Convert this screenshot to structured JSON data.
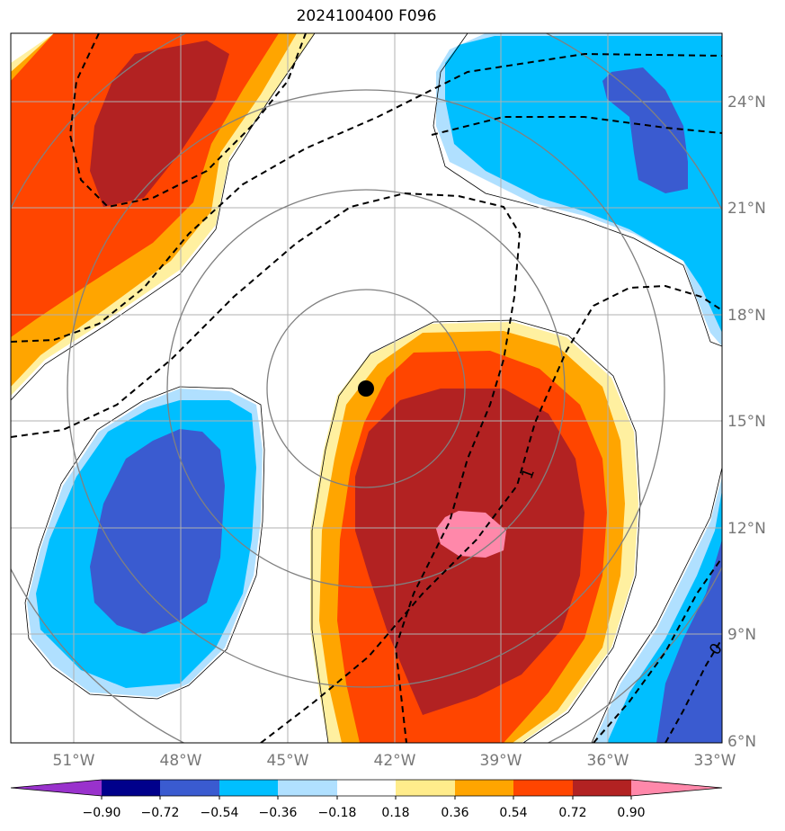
{
  "title": "2024100400 F096",
  "map": {
    "lat_labels": [
      "24°N",
      "21°N",
      "18°N",
      "15°N",
      "12°N",
      "9°N",
      "6°N"
    ],
    "lon_labels": [
      "51°W",
      "48°W",
      "45°W",
      "42°W",
      "39°W",
      "36°W",
      "33°W"
    ],
    "contour_labels": [
      "1",
      "0"
    ],
    "grid": true,
    "center_marker": "storm-center-dot",
    "range_ring_color": "#808080",
    "dashed_contour_color": "#000000"
  },
  "colorbar": {
    "ticks": [
      "−0.90",
      "−0.72",
      "−0.54",
      "−0.36",
      "−0.18",
      "0.18",
      "0.36",
      "0.54",
      "0.72",
      "0.90"
    ],
    "colors": [
      "#9932cc",
      "#00008b",
      "#3a5bd0",
      "#00bfff",
      "#b0e0ff",
      "#ffffff",
      "#ffec8b",
      "#ffa500",
      "#ff4500",
      "#b22222",
      "#ff88aa"
    ]
  }
}
